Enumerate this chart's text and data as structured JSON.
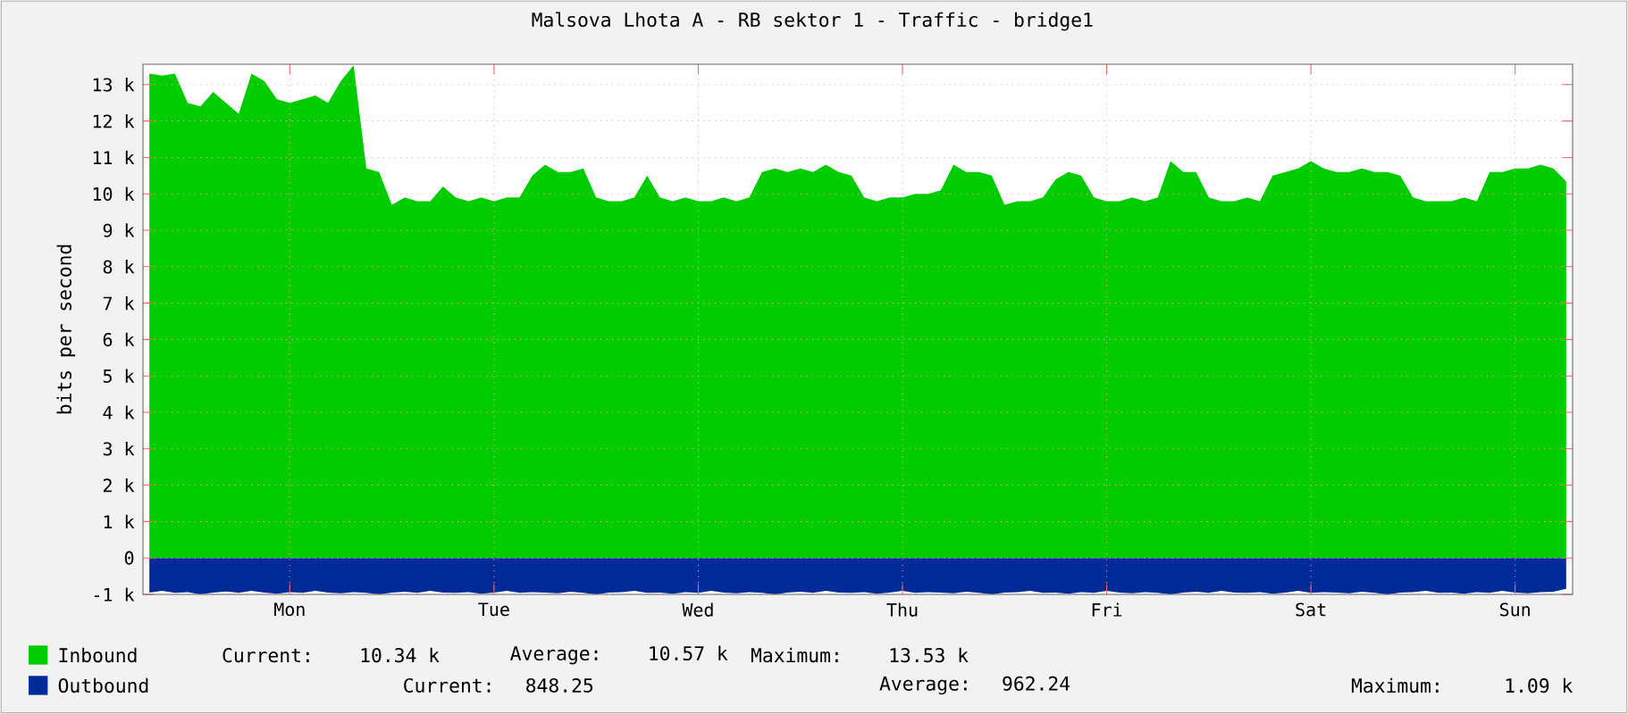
{
  "chart_data": {
    "type": "area",
    "title": "Malsova Lhota A - RB sektor 1 - Traffic - bridge1",
    "ylabel": "bits per second",
    "categories": [
      null,
      null,
      null,
      null,
      null,
      null,
      null,
      null,
      null,
      null,
      null,
      "Mon",
      null,
      null,
      null,
      null,
      null,
      null,
      null,
      null,
      null,
      null,
      null,
      null,
      null,
      null,
      null,
      "Tue",
      null,
      null,
      null,
      null,
      null,
      null,
      null,
      null,
      null,
      null,
      null,
      null,
      null,
      null,
      null,
      "Wed",
      null,
      null,
      null,
      null,
      null,
      null,
      null,
      null,
      null,
      null,
      null,
      null,
      null,
      null,
      null,
      "Thu",
      null,
      null,
      null,
      null,
      null,
      null,
      null,
      null,
      null,
      null,
      null,
      null,
      null,
      null,
      null,
      "Fri",
      null,
      null,
      null,
      null,
      null,
      null,
      null,
      null,
      null,
      null,
      null,
      null,
      null,
      null,
      null,
      "Sat",
      null,
      null,
      null,
      null,
      null,
      null,
      null,
      null,
      null,
      null,
      null,
      null,
      null,
      null,
      null,
      "Sun",
      null,
      null,
      null,
      null
    ],
    "ylim": [
      -1000,
      13560
    ],
    "yticks": [
      {
        "value": -1000,
        "label": "-1 k"
      },
      0,
      {
        "value": 1000,
        "label": "1 k"
      },
      {
        "value": 2000,
        "label": "2 k"
      },
      {
        "value": 3000,
        "label": "3 k"
      },
      {
        "value": 4000,
        "label": "4 k"
      },
      {
        "value": 5000,
        "label": "5 k"
      },
      {
        "value": 6000,
        "label": "6 k"
      },
      {
        "value": 7000,
        "label": "7 k"
      },
      {
        "value": 8000,
        "label": "8 k"
      },
      {
        "value": 9000,
        "label": "9 k"
      },
      {
        "value": 10000,
        "label": "10 k"
      },
      {
        "value": 11000,
        "label": "11 k"
      },
      {
        "value": 12000,
        "label": "12 k"
      },
      {
        "value": 13000,
        "label": "13 k"
      }
    ],
    "grid": true,
    "legend": "bottom",
    "series": [
      {
        "name": "Inbound",
        "color": "#00cc00",
        "values": [
          13300,
          13250,
          13300,
          12500,
          12400,
          12800,
          12500,
          12200,
          13300,
          13100,
          12600,
          12500,
          12600,
          12700,
          12500,
          13100,
          13530,
          10700,
          10600,
          9700,
          9900,
          9800,
          9800,
          10200,
          9900,
          9800,
          9900,
          9800,
          9900,
          9900,
          10500,
          10800,
          10600,
          10600,
          10700,
          9900,
          9800,
          9800,
          9900,
          10500,
          9900,
          9800,
          9900,
          9800,
          9800,
          9900,
          9800,
          9900,
          10600,
          10700,
          10600,
          10700,
          10600,
          10800,
          10600,
          10500,
          9900,
          9800,
          9900,
          9900,
          10000,
          10000,
          10100,
          10800,
          10600,
          10600,
          10500,
          9700,
          9800,
          9800,
          9900,
          10400,
          10600,
          10500,
          9900,
          9800,
          9800,
          9900,
          9800,
          9900,
          10900,
          10600,
          10600,
          9900,
          9800,
          9800,
          9900,
          9800,
          10500,
          10600,
          10700,
          10900,
          10700,
          10600,
          10600,
          10700,
          10600,
          10600,
          10500,
          9900,
          9800,
          9800,
          9800,
          9900,
          9800,
          10600,
          10600,
          10700,
          10700,
          10800,
          10700,
          10340
        ]
      },
      {
        "name": "Outbound",
        "color": "#002a97",
        "values": [
          -950,
          -900,
          -960,
          -940,
          -1000,
          -950,
          -920,
          -960,
          -900,
          -950,
          -980,
          -940,
          -960,
          -900,
          -950,
          -970,
          -940,
          -960,
          -1000,
          -950,
          -930,
          -960,
          -900,
          -950,
          -960,
          -940,
          -980,
          -950,
          -900,
          -960,
          -940,
          -950,
          -970,
          -930,
          -960,
          -1000,
          -950,
          -940,
          -900,
          -960,
          -950,
          -980,
          -940,
          -960,
          -900,
          -950,
          -970,
          -940,
          -960,
          -1000,
          -950,
          -930,
          -960,
          -900,
          -950,
          -960,
          -940,
          -980,
          -950,
          -900,
          -960,
          -940,
          -950,
          -970,
          -930,
          -960,
          -1000,
          -950,
          -940,
          -900,
          -960,
          -950,
          -980,
          -940,
          -960,
          -900,
          -950,
          -970,
          -940,
          -960,
          -1000,
          -950,
          -930,
          -960,
          -900,
          -950,
          -960,
          -940,
          -980,
          -950,
          -900,
          -960,
          -940,
          -950,
          -970,
          -930,
          -960,
          -1000,
          -950,
          -940,
          -900,
          -960,
          -950,
          -980,
          -940,
          -960,
          -900,
          -950,
          -970,
          -940,
          -930,
          -850
        ]
      }
    ],
    "annotations": [
      "Current:   10.34 k",
      "Average:   10.57 k",
      "Maximum:   13.53 k",
      "Current:  848.25",
      "Average:  962.24",
      "Maximum:    1.09 k"
    ]
  }
}
